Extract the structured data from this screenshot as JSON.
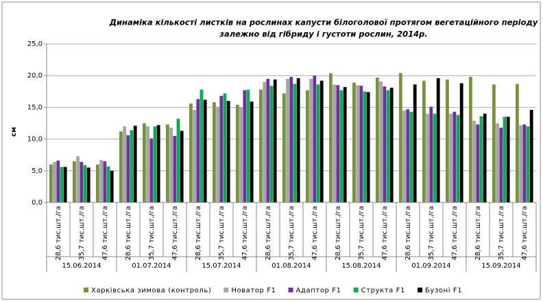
{
  "chart_data": {
    "type": "bar",
    "title": [
      "Динаміка кількості листків на рослинах капусти білоголової протягом вегетаційного періоду",
      "залежно від гібриду і густоти рослин, 2014р."
    ],
    "y_label": "см",
    "categories": [
      "28,6 тис.шт./га",
      "35,7 тис.шт./га",
      "47,6 тис.шт./га",
      "28,6 тис.шт./га",
      "35,7 тис.шт./га",
      "47,6 тис.шт./га",
      "28,6 тис.шт./га",
      "35,7 тис.шт./га",
      "47,6 тис.шт./га",
      "28,6 тис.шт./га",
      "35,7 тис.шт./га",
      "47,6 тис.шт./га",
      "28,6 тис.шт./га",
      "35,7 тис.шт./га",
      "47,6 тис.шт./га",
      "28,6 тис.шт./га",
      "35,7 тис.шт./га",
      "47,6 тис.шт./га",
      "28,6 тис.шт./га",
      "35,7 тис.шт./га",
      "47,6 тис.шт./га"
    ],
    "category_groups": [
      "15.06.2014",
      "01.07.2014",
      "15.07.2014",
      "01.08.2014",
      "15.08.2014",
      "01.09.2014",
      "15.09.2014"
    ],
    "series": [
      {
        "name": "Харківська зимова (контроль)",
        "color": "#77933c",
        "values": [
          6.0,
          6.5,
          6.0,
          11.2,
          12.5,
          12.3,
          15.6,
          15.8,
          15.4,
          17.8,
          17.2,
          17.7,
          20.4,
          18.9,
          19.7,
          20.4,
          19.2,
          19.4,
          19.8,
          18.6,
          18.7
        ]
      },
      {
        "name": "Новатор F1",
        "color": "#a6a6a6",
        "values": [
          6.4,
          7.3,
          6.7,
          12.0,
          12.0,
          11.8,
          14.6,
          15.1,
          15.0,
          19.0,
          19.5,
          19.5,
          18.6,
          18.5,
          19.1,
          14.5,
          14.0,
          14.0,
          12.9,
          12.5,
          12.2
        ]
      },
      {
        "name": "Адаптор  F1",
        "color": "#7030a0",
        "values": [
          6.6,
          6.4,
          6.5,
          10.6,
          10.1,
          10.5,
          16.3,
          16.8,
          17.7,
          19.5,
          19.8,
          20.0,
          18.5,
          18.4,
          18.3,
          14.7,
          15.1,
          14.3,
          12.3,
          11.8,
          12.3
        ]
      },
      {
        "name": "Структа F1",
        "color": "#00b050",
        "values": [
          5.6,
          5.9,
          5.7,
          11.4,
          12.0,
          13.2,
          17.8,
          17.2,
          17.8,
          18.4,
          18.7,
          18.6,
          17.7,
          17.5,
          17.7,
          14.3,
          14.0,
          13.8,
          13.6,
          13.5,
          12.0
        ]
      },
      {
        "name": "Бузоні F1",
        "color": "#000000",
        "values": [
          5.6,
          5.5,
          5.0,
          12.1,
          12.2,
          11.3,
          16.2,
          16.0,
          15.9,
          19.4,
          19.6,
          19.2,
          18.2,
          17.4,
          18.1,
          18.6,
          19.6,
          18.8,
          14.0,
          13.5,
          14.6
        ]
      }
    ],
    "ylim": [
      0,
      25
    ],
    "yticks": [
      {
        "value": 0,
        "label": "0,0"
      },
      {
        "value": 5,
        "label": "5,0"
      },
      {
        "value": 10,
        "label": "10,0"
      },
      {
        "value": 15,
        "label": "15,0"
      },
      {
        "value": 20,
        "label": "20,0"
      },
      {
        "value": 25,
        "label": "25,0"
      }
    ],
    "grid": true,
    "legend": "bottom"
  }
}
